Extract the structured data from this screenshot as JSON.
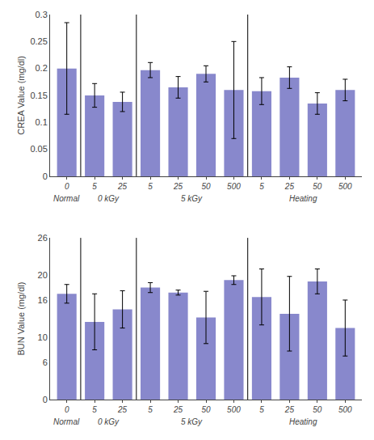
{
  "chart_data": [
    {
      "type": "bar",
      "categories": [
        "0",
        "5",
        "25",
        "5",
        "25",
        "50",
        "500",
        "5",
        "25",
        "50",
        "500"
      ],
      "groups": [
        "Normal",
        "0 kGy",
        "0 kGy",
        "5 kGy",
        "5 kGy",
        "5 kGy",
        "5 kGy",
        "Heating",
        "Heating",
        "Heating",
        "Heating"
      ],
      "values": [
        0.2,
        0.15,
        0.138,
        0.197,
        0.165,
        0.19,
        0.16,
        0.158,
        0.183,
        0.135,
        0.16
      ],
      "errors": [
        0.085,
        0.022,
        0.018,
        0.014,
        0.02,
        0.015,
        0.09,
        0.025,
        0.02,
        0.02,
        0.02
      ],
      "ylabel": "CREA Value (mg/dl)",
      "ylim": [
        0,
        0.3
      ],
      "yticks": [
        0,
        0.05,
        0.1,
        0.15,
        0.2,
        0.25,
        0.3
      ],
      "color": "#8888cc",
      "grid": false
    },
    {
      "type": "bar",
      "categories": [
        "0",
        "5",
        "25",
        "5",
        "25",
        "50",
        "500",
        "5",
        "25",
        "50",
        "500"
      ],
      "groups": [
        "Normal",
        "0 kGy",
        "0 kGy",
        "5 kGy",
        "5 kGy",
        "5 kGy",
        "5 kGy",
        "Heating",
        "Heating",
        "Heating",
        "Heating"
      ],
      "values": [
        17.0,
        12.5,
        14.5,
        18.0,
        17.2,
        13.2,
        19.2,
        16.5,
        13.8,
        19.0,
        11.5
      ],
      "errors": [
        1.5,
        4.5,
        3.0,
        0.8,
        0.4,
        4.2,
        0.7,
        4.5,
        6.0,
        2.0,
        4.5
      ],
      "ylabel": "BUN Value (mg/dl)",
      "ylim": [
        0,
        26
      ],
      "yticks": [
        0,
        6,
        10,
        16,
        20,
        26
      ],
      "color": "#8888cc",
      "grid": false
    }
  ]
}
